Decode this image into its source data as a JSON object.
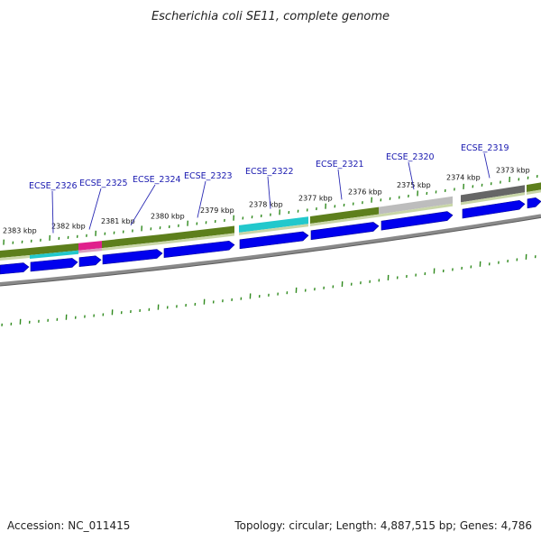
{
  "title": "Escherichia coli SE11, complete genome",
  "footer": {
    "accession": "Accession: NC_011415",
    "summary": "Topology: circular; Length: 4,887,515 bp; Genes: 4,786"
  },
  "colors": {
    "forward_cds": "#0000ee",
    "track_olive": "#5d7f1c",
    "track_cyan": "#22c8cc",
    "track_magenta": "#e0208c",
    "track_gray": "#bdbdbd",
    "track_dark": "#666666",
    "tick_green": "#2f8a1d",
    "gene_label": "#1a1ab0",
    "backbone": "#8a8a8a"
  },
  "scale_labels": [
    {
      "text": "2383 kbp",
      "kbp": 2383
    },
    {
      "text": "2382 kbp",
      "kbp": 2382
    },
    {
      "text": "2381 kbp",
      "kbp": 2381
    },
    {
      "text": "2380 kbp",
      "kbp": 2380
    },
    {
      "text": "2379 kbp",
      "kbp": 2379
    },
    {
      "text": "2378 kbp",
      "kbp": 2378
    },
    {
      "text": "2377 kbp",
      "kbp": 2377
    },
    {
      "text": "2376 kbp",
      "kbp": 2376
    },
    {
      "text": "2375 kbp",
      "kbp": 2375
    },
    {
      "text": "2374 kbp",
      "kbp": 2374
    },
    {
      "text": "2373 kbp",
      "kbp": 2373
    }
  ],
  "gene_labels": [
    {
      "name": "ECSE_2326"
    },
    {
      "name": "ECSE_2325"
    },
    {
      "name": "ECSE_2324"
    },
    {
      "name": "ECSE_2323"
    },
    {
      "name": "ECSE_2322"
    },
    {
      "name": "ECSE_2321"
    },
    {
      "name": "ECSE_2320"
    },
    {
      "name": "ECSE_2319"
    }
  ]
}
